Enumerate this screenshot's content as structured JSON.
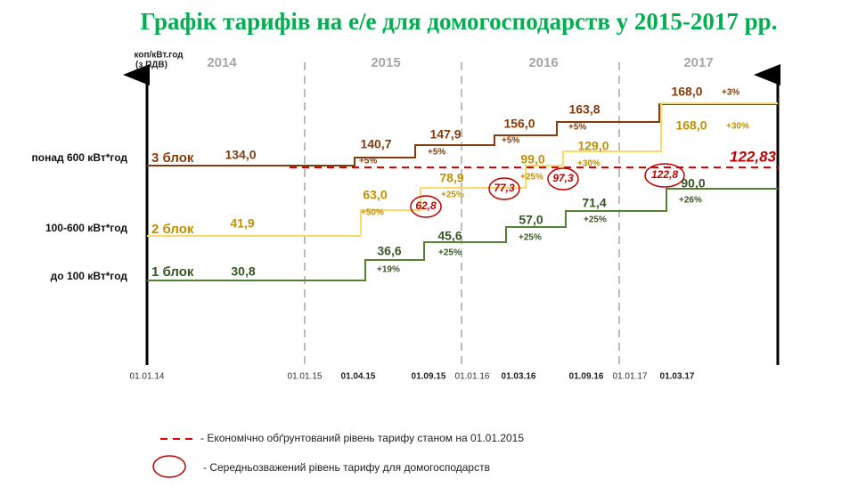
{
  "title": "Графік тарифів на е/е для домогосподарств у 2015-2017 рр.",
  "y_axis_label": [
    "коп/кВт.год",
    "(з ПДВ)"
  ],
  "years": [
    "2014",
    "2015",
    "2016",
    "2017"
  ],
  "dates": [
    "01.01.14",
    "01.01.15",
    "01.04.15",
    "01.09.15",
    "01.01.16",
    "01.03.16",
    "01.09.16",
    "01.01.17",
    "01.03.17"
  ],
  "blocks": [
    {
      "range": "понад 600 кВт*год",
      "name": "3 блок",
      "values": [
        "134,0",
        "140,7",
        "147,9",
        "156,0",
        "163,8",
        "168,0"
      ],
      "changes": [
        "+5%",
        "+5%",
        "+5%",
        "+5%",
        "+3%"
      ]
    },
    {
      "range": "100-600 кВт*год",
      "name": "2 блок",
      "values": [
        "41,9",
        "63,0",
        "78,9",
        "99,0",
        "129,0",
        "168,0"
      ],
      "changes": [
        "+50%",
        "+25%",
        "+25%",
        "+30%",
        "+30%"
      ]
    },
    {
      "range": "до 100 кВт*год",
      "name": "1 блок",
      "values": [
        "30,8",
        "36,6",
        "45,6",
        "57,0",
        "71,4",
        "90,0"
      ],
      "changes": [
        "+19%",
        "+25%",
        "+25%",
        "+25%",
        "+26%"
      ]
    }
  ],
  "reference_level": "122,83",
  "weighted_averages": [
    "62,8",
    "77,3",
    "97,3",
    "122,8"
  ],
  "legend": [
    "- Економічно обґрунтований рівень тарифу станом на 01.01.2015",
    "- Середньозважений рівень тарифу для домогосподарств"
  ]
}
